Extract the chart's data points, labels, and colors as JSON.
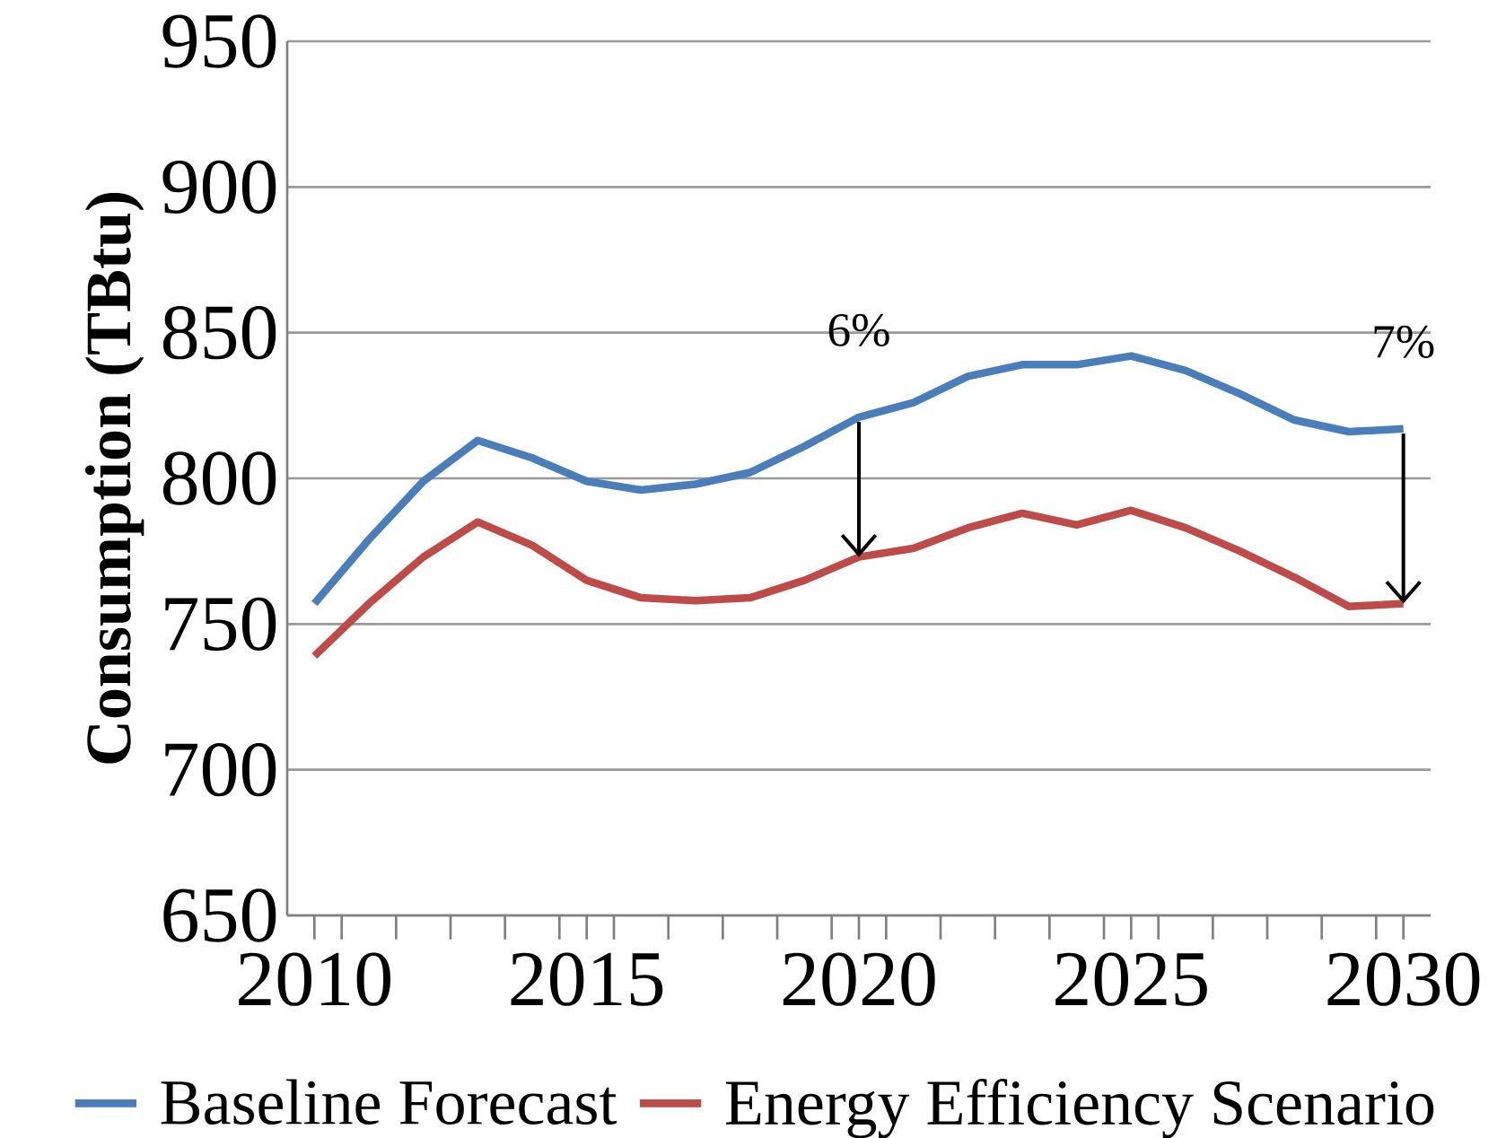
{
  "chart_data": {
    "type": "line",
    "ylabel": "Consumption (TBtu)",
    "x": [
      2010,
      2011,
      2012,
      2013,
      2014,
      2015,
      2016,
      2017,
      2018,
      2019,
      2020,
      2021,
      2022,
      2023,
      2024,
      2025,
      2026,
      2027,
      2028,
      2029,
      2030
    ],
    "series": [
      {
        "name": "Baseline Forecast",
        "color": "#4a7ebb",
        "values": [
          757,
          779,
          799,
          813,
          807,
          799,
          796,
          798,
          802,
          811,
          821,
          826,
          835,
          839,
          839,
          842,
          837,
          829,
          820,
          816,
          817
        ]
      },
      {
        "name": "Energy Efficiency Scenario",
        "color": "#be4b48",
        "values": [
          739,
          757,
          773,
          785,
          777,
          765,
          759,
          758,
          759,
          765,
          773,
          776,
          783,
          788,
          784,
          789,
          783,
          775,
          766,
          756,
          757
        ]
      }
    ],
    "xlim": [
      2009.5,
      2030.5
    ],
    "xticks": [
      2010,
      2015,
      2020,
      2025,
      2030
    ],
    "ylim": [
      650,
      950
    ],
    "yticks": [
      650,
      700,
      750,
      800,
      850,
      900,
      950
    ],
    "grid": "y",
    "legend": "bottom",
    "marker": "none",
    "line_style": "solid",
    "annotations": [
      {
        "text": "6%",
        "x": 2020,
        "y": 821
      },
      {
        "text": "7%",
        "x": 2030,
        "y": 817
      }
    ]
  }
}
